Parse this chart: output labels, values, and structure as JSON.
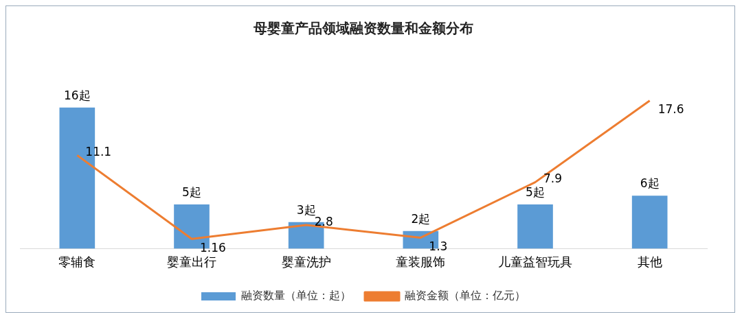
{
  "chart_data": {
    "type": "bar",
    "title": "母婴童产品领域融资数量和金额分布",
    "categories": [
      "零辅食",
      "婴童出行",
      "婴童洗护",
      "童装服饰",
      "儿童益智玩具",
      "其他"
    ],
    "series": [
      {
        "name": "融资数量（单位：起）",
        "color": "#5b9bd5",
        "values": [
          16,
          5,
          3,
          2,
          5,
          6
        ],
        "value_labels": [
          "16起",
          "5起",
          "3起",
          "2起",
          "5起",
          "6起"
        ]
      },
      {
        "name": "融资金额（单位：亿元）",
        "type": "line",
        "axis": "y2",
        "color": "#ed7d31",
        "values": [
          11.1,
          1.16,
          2.8,
          1.3,
          7.9,
          17.6
        ],
        "value_labels": [
          "11.1",
          "1.16",
          "2.8",
          "1.3",
          "7.9",
          "17.6"
        ]
      }
    ],
    "legend": "bottom",
    "grid": false,
    "marker": "none"
  }
}
